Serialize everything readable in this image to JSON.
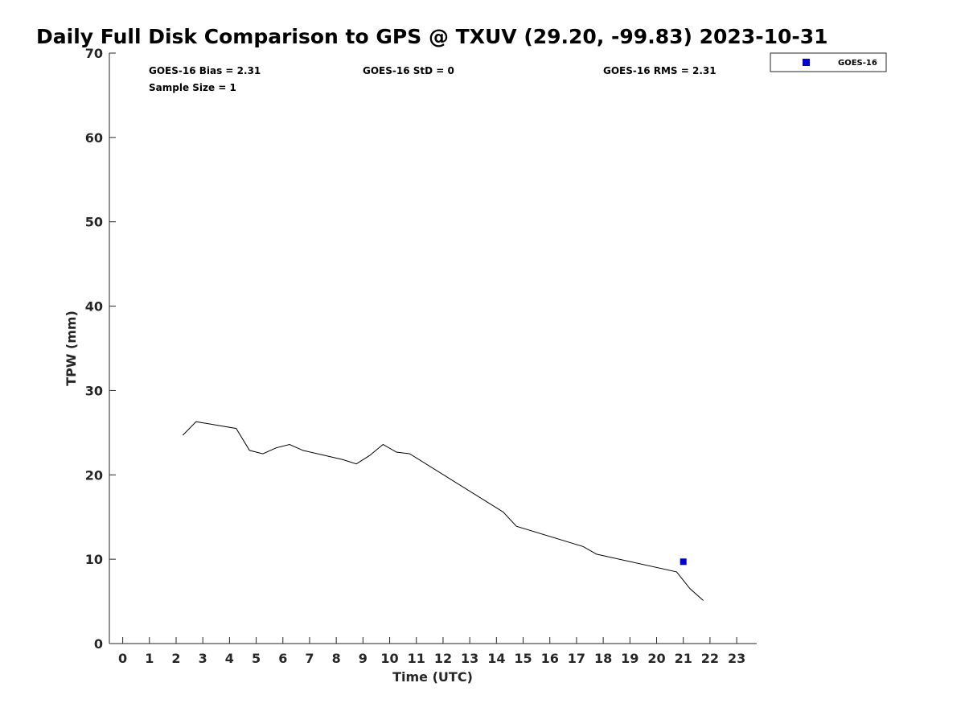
{
  "chart_data": {
    "type": "line",
    "title": "Daily Full Disk Comparison to GPS @ TXUV (29.20, -99.83) 2023-10-31",
    "xlabel": "Time (UTC)",
    "ylabel": "TPW (mm)",
    "xlim": [
      -0.5,
      23.75
    ],
    "ylim": [
      0,
      70
    ],
    "xticks": [
      0,
      1,
      2,
      3,
      4,
      5,
      6,
      7,
      8,
      9,
      10,
      11,
      12,
      13,
      14,
      15,
      16,
      17,
      18,
      19,
      20,
      21,
      22,
      23
    ],
    "yticks": [
      0,
      10,
      20,
      30,
      40,
      50,
      60,
      70
    ],
    "grid": false,
    "legend_position": "outside top-right",
    "stats": {
      "bias": "GOES-16 Bias = 2.31",
      "std": "GOES-16 StD = 0",
      "rms": "GOES-16 RMS = 2.31",
      "sample_size": "Sample Size = 1"
    },
    "series": [
      {
        "style": "line",
        "color": "#000000",
        "x": [
          2.25,
          2.75,
          4.25,
          4.75,
          5.25,
          5.75,
          6.25,
          6.75,
          8.25,
          8.75,
          9.25,
          9.75,
          10.25,
          10.75,
          14.25,
          14.75,
          17.25,
          17.75,
          20.75,
          21.25,
          21.75
        ],
        "y": [
          24.7,
          26.3,
          25.5,
          22.9,
          22.5,
          23.2,
          23.6,
          22.9,
          21.8,
          21.3,
          22.3,
          23.6,
          22.7,
          22.5,
          15.6,
          13.9,
          11.5,
          10.6,
          8.5,
          6.5,
          5.1
        ]
      },
      {
        "name": "GOES-16",
        "style": "scatter",
        "marker": "square",
        "color": "#0000cc",
        "x": [
          21.0
        ],
        "y": [
          9.7
        ]
      }
    ]
  }
}
